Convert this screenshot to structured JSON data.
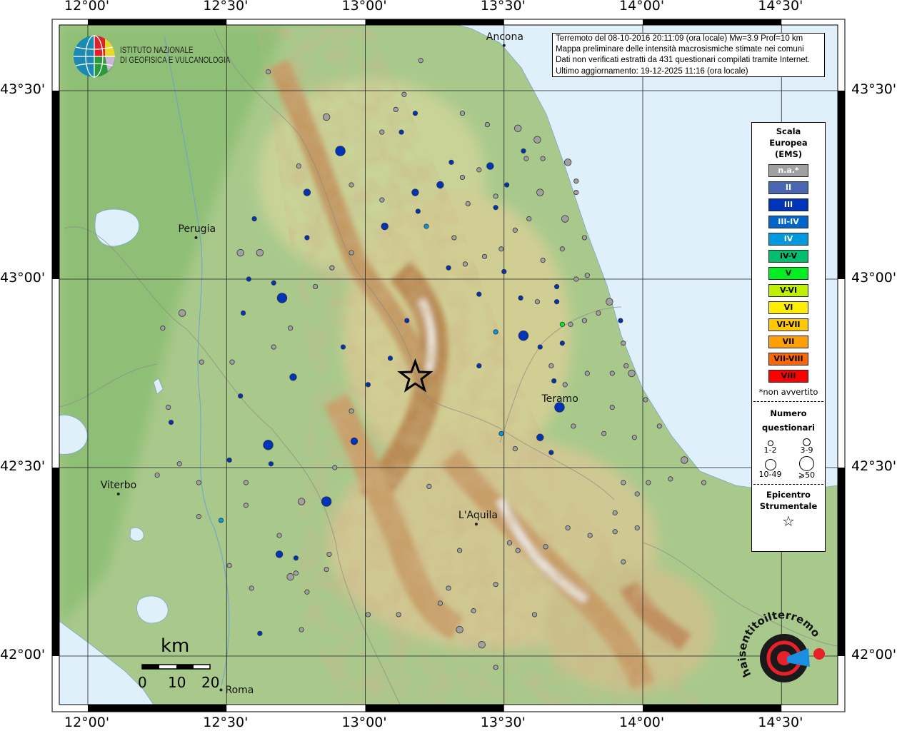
{
  "title_box": {
    "lines": [
      "Terremoto del 08-10-2016 20:11:09 (ora locale) Mw=3.9 Prof=10 km",
      "Mappa preliminare delle intensità macrosismiche stimate nei comuni",
      "Dati non verificati estratti da 431 questionari compilati tramite Internet.",
      "Ultimo aggiornamento: 19-12-2025 11:16 (ora locale)"
    ]
  },
  "ingv_logo": {
    "line1": "ISTITUTO NAZIONALE",
    "line2": "DI GEOFISICA E VULCANOLOGIA"
  },
  "hsit_logo": {
    "text": "www.haisentitoilterremoto.it"
  },
  "grid": {
    "longitudes": [
      {
        "value": 12.0,
        "label": "12°00'"
      },
      {
        "value": 12.5,
        "label": "12°30'"
      },
      {
        "value": 13.0,
        "label": "13°00'"
      },
      {
        "value": 13.5,
        "label": "13°30'"
      },
      {
        "value": 14.0,
        "label": "14°00'"
      },
      {
        "value": 14.5,
        "label": "14°30'"
      }
    ],
    "latitudes": [
      {
        "value": 43.5,
        "label": "43°30'"
      },
      {
        "value": 43.0,
        "label": "43°00'"
      },
      {
        "value": 42.5,
        "label": "42°30'"
      },
      {
        "value": 42.0,
        "label": "42°00'"
      }
    ]
  },
  "legend": {
    "title_lines": [
      "Scala",
      "Europea",
      "(EMS)"
    ],
    "classes": [
      {
        "key": "na",
        "label": "n.a.*",
        "color": "#a0a0a0",
        "text": "#ffffff"
      },
      {
        "key": "II",
        "label": "II",
        "color": "#4a66b0",
        "text": "#ffffff"
      },
      {
        "key": "III",
        "label": "III",
        "color": "#0033bb",
        "text": "#ffffff"
      },
      {
        "key": "III-IV",
        "label": "III-IV",
        "color": "#0066cc",
        "text": "#ffffff"
      },
      {
        "key": "IV",
        "label": "IV",
        "color": "#0099e0",
        "text": "#ffffff"
      },
      {
        "key": "IV-V",
        "label": "IV-V",
        "color": "#00c070",
        "text": "#000000"
      },
      {
        "key": "V",
        "label": "V",
        "color": "#00ee22",
        "text": "#000000"
      },
      {
        "key": "V-VI",
        "label": "V-VI",
        "color": "#c0f000",
        "text": "#000000"
      },
      {
        "key": "VI",
        "label": "VI",
        "color": "#ffee00",
        "text": "#000000"
      },
      {
        "key": "VI-VII",
        "label": "VI-VII",
        "color": "#ffc800",
        "text": "#000000"
      },
      {
        "key": "VII",
        "label": "VII",
        "color": "#ffa000",
        "text": "#000000"
      },
      {
        "key": "VII-VIII",
        "label": "VII-VIII",
        "color": "#ff6600",
        "text": "#000000"
      },
      {
        "key": "VIII",
        "label": "VIII",
        "color": "#ff0000",
        "text": "#000000"
      }
    ],
    "note": "*non avvertito",
    "count_title_lines": [
      "Numero",
      "questionari"
    ],
    "count_classes": [
      "1-2",
      "3-9",
      "10-49",
      "⩾50"
    ],
    "epicenter_title_lines": [
      "Epicentro",
      "Strumentale"
    ]
  },
  "scale_bar": {
    "unit": "km",
    "ticks": [
      "0",
      "10",
      "20"
    ]
  },
  "epicenter": {
    "lon": 13.18,
    "lat": 42.74
  },
  "cities": [
    {
      "name": "Ancona",
      "lon": 13.5,
      "lat": 43.62
    },
    {
      "name": "Perugia",
      "lon": 12.39,
      "lat": 43.11
    },
    {
      "name": "Teramo",
      "lon": 13.7,
      "lat": 42.66
    },
    {
      "name": "Viterbo",
      "lon": 12.11,
      "lat": 42.43
    },
    {
      "name": "L'Aquila",
      "lon": 13.4,
      "lat": 42.35
    },
    {
      "name": "Roma",
      "lon": 12.48,
      "lat": 41.91
    }
  ],
  "points_format": [
    "lon",
    "lat",
    "intensity",
    "questionnaires"
  ],
  "points": [
    [
      12.65,
      43.55,
      "na",
      "1-2"
    ],
    [
      13.2,
      43.58,
      "na",
      "1-2"
    ],
    [
      13.14,
      43.49,
      "na",
      "1-2"
    ],
    [
      13.11,
      43.45,
      "na",
      "1-2"
    ],
    [
      13.35,
      43.44,
      "na",
      "1-2"
    ],
    [
      13.44,
      43.41,
      "na",
      "1-2"
    ],
    [
      13.06,
      43.39,
      "na",
      "1-2"
    ],
    [
      12.76,
      43.3,
      "na",
      "1-2"
    ],
    [
      12.95,
      43.25,
      "na",
      "1-2"
    ],
    [
      13.35,
      43.27,
      "na",
      "1-2"
    ],
    [
      13.41,
      43.29,
      "na",
      "1-2"
    ],
    [
      13.06,
      43.21,
      "na",
      "1-2"
    ],
    [
      13.47,
      43.22,
      "na",
      "1-2"
    ],
    [
      13.37,
      43.2,
      "na",
      "1-2"
    ],
    [
      13.59,
      43.16,
      "na",
      "1-2"
    ],
    [
      13.54,
      43.13,
      "na",
      "1-2"
    ],
    [
      13.32,
      43.11,
      "na",
      "1-2"
    ],
    [
      13.49,
      43.08,
      "na",
      "1-2"
    ],
    [
      13.43,
      43.06,
      "na",
      "1-2"
    ],
    [
      13.36,
      43.04,
      "na",
      "1-2"
    ],
    [
      12.95,
      43.07,
      "na",
      "1-2"
    ],
    [
      12.88,
      43.03,
      "na",
      "1-2"
    ],
    [
      12.82,
      42.98,
      "na",
      "1-2"
    ],
    [
      12.73,
      42.87,
      "na",
      "1-2"
    ],
    [
      12.67,
      42.82,
      "na",
      "1-2"
    ],
    [
      12.52,
      42.78,
      "na",
      "1-2"
    ],
    [
      12.41,
      42.78,
      "na",
      "1-2"
    ],
    [
      12.27,
      42.87,
      "na",
      "1-2"
    ],
    [
      12.29,
      42.66,
      "na",
      "1-2"
    ],
    [
      12.95,
      42.65,
      "na",
      "1-2"
    ],
    [
      12.33,
      42.51,
      "na",
      "1-2"
    ],
    [
      12.25,
      42.48,
      "na",
      "1-2"
    ],
    [
      12.4,
      42.46,
      "na",
      "1-2"
    ],
    [
      12.57,
      42.46,
      "na",
      "1-2"
    ],
    [
      12.57,
      42.4,
      "na",
      "1-2"
    ],
    [
      12.4,
      42.37,
      "na",
      "1-2"
    ],
    [
      12.69,
      42.32,
      "na",
      "1-2"
    ],
    [
      12.51,
      42.24,
      "na",
      "1-2"
    ],
    [
      12.59,
      42.18,
      "na",
      "1-2"
    ],
    [
      12.75,
      42.22,
      "na",
      "1-2"
    ],
    [
      12.79,
      42.17,
      "na",
      "1-2"
    ],
    [
      12.87,
      42.27,
      "na",
      "1-2"
    ],
    [
      12.86,
      42.23,
      "na",
      "1-2"
    ],
    [
      12.77,
      42.07,
      "na",
      "1-2"
    ],
    [
      13.01,
      42.11,
      "na",
      "1-2"
    ],
    [
      13.12,
      42.11,
      "na",
      "1-2"
    ],
    [
      13.27,
      42.14,
      "na",
      "1-2"
    ],
    [
      13.39,
      42.12,
      "na",
      "1-2"
    ],
    [
      13.47,
      41.97,
      "na",
      "1-2"
    ],
    [
      13.23,
      42.45,
      "na",
      "1-2"
    ],
    [
      12.89,
      42.5,
      "na",
      "1-2"
    ],
    [
      13.54,
      42.55,
      "na",
      "1-2"
    ],
    [
      13.75,
      42.61,
      "na",
      "1-2"
    ],
    [
      13.72,
      42.72,
      "na",
      "1-2"
    ],
    [
      13.67,
      42.77,
      "na",
      "1-2"
    ],
    [
      13.8,
      42.75,
      "na",
      "1-2"
    ],
    [
      13.89,
      42.75,
      "na",
      "1-2"
    ],
    [
      13.94,
      42.77,
      "na",
      "1-2"
    ],
    [
      13.89,
      42.66,
      "na",
      "1-2"
    ],
    [
      13.86,
      42.59,
      "na",
      "1-2"
    ],
    [
      13.97,
      42.58,
      "na",
      "1-2"
    ],
    [
      13.93,
      42.46,
      "na",
      "1-2"
    ],
    [
      13.98,
      42.43,
      "na",
      "1-2"
    ],
    [
      14.02,
      42.46,
      "na",
      "1-2"
    ],
    [
      14.1,
      42.47,
      "na",
      "1-2"
    ],
    [
      14.22,
      42.46,
      "na",
      "1-2"
    ],
    [
      14.06,
      42.61,
      "na",
      "1-2"
    ],
    [
      14.01,
      42.68,
      "na",
      "1-2"
    ],
    [
      13.93,
      42.83,
      "na",
      "1-2"
    ],
    [
      13.84,
      42.91,
      "na",
      "1-2"
    ],
    [
      13.79,
      42.89,
      "na",
      "1-2"
    ],
    [
      13.74,
      42.88,
      "na",
      "1-2"
    ],
    [
      13.62,
      42.94,
      "na",
      "1-2"
    ],
    [
      13.76,
      43.0,
      "na",
      "1-2"
    ],
    [
      13.64,
      43.05,
      "na",
      "1-2"
    ],
    [
      13.71,
      43.08,
      "na",
      "1-2"
    ],
    [
      13.76,
      43.26,
      "na",
      "1-2"
    ],
    [
      13.76,
      43.23,
      "na",
      "1-2"
    ],
    [
      13.79,
      43.11,
      "na",
      "1-2"
    ],
    [
      13.58,
      43.32,
      "na",
      "1-2"
    ],
    [
      13.64,
      43.32,
      "na",
      "1-2"
    ],
    [
      13.8,
      43.01,
      "na",
      "1-2"
    ],
    [
      13.34,
      42.28,
      "na",
      "1-2"
    ],
    [
      13.55,
      42.28,
      "na",
      "1-2"
    ],
    [
      13.65,
      42.29,
      "na",
      "1-2"
    ],
    [
      13.73,
      42.34,
      "na",
      "1-2"
    ],
    [
      13.81,
      42.32,
      "na",
      "1-2"
    ],
    [
      13.9,
      42.33,
      "na",
      "1-2"
    ],
    [
      13.98,
      42.34,
      "na",
      "1-2"
    ],
    [
      13.9,
      42.38,
      "na",
      "1-2"
    ],
    [
      13.93,
      42.25,
      "na",
      "1-2"
    ],
    [
      13.61,
      42.11,
      "na",
      "1-2"
    ],
    [
      13.3,
      42.18,
      "na",
      "1-2"
    ],
    [
      13.47,
      42.19,
      "na",
      "1-2"
    ],
    [
      13.52,
      42.3,
      "na",
      "1-2"
    ],
    [
      12.86,
      43.43,
      "na",
      "3-9"
    ],
    [
      13.55,
      43.4,
      "na",
      "3-9"
    ],
    [
      13.62,
      43.37,
      "na",
      "3-9"
    ],
    [
      13.73,
      43.31,
      "na",
      "3-9"
    ],
    [
      13.63,
      43.23,
      "na",
      "3-9"
    ],
    [
      13.72,
      43.16,
      "na",
      "3-9"
    ],
    [
      13.88,
      42.94,
      "na",
      "3-9"
    ],
    [
      13.96,
      42.75,
      "na",
      "3-9"
    ],
    [
      14.15,
      42.52,
      "na",
      "3-9"
    ],
    [
      12.55,
      43.07,
      "na",
      "3-9"
    ],
    [
      12.62,
      43.07,
      "na",
      "3-9"
    ],
    [
      12.34,
      42.91,
      "na",
      "3-9"
    ],
    [
      12.77,
      42.41,
      "na",
      "3-9"
    ],
    [
      12.73,
      42.21,
      "na",
      "3-9"
    ],
    [
      13.34,
      42.07,
      "na",
      "3-9"
    ],
    [
      13.42,
      42.03,
      "na",
      "3-9"
    ],
    [
      13.18,
      43.44,
      "III",
      "1-2"
    ],
    [
      13.13,
      43.39,
      "III",
      "1-2"
    ],
    [
      13.57,
      43.34,
      "III",
      "1-2"
    ],
    [
      13.31,
      43.31,
      "III",
      "1-2"
    ],
    [
      13.51,
      43.25,
      "III",
      "1-2"
    ],
    [
      13.47,
      43.19,
      "III",
      "1-2"
    ],
    [
      13.19,
      43.18,
      "III",
      "1-2"
    ],
    [
      12.6,
      43.16,
      "III",
      "1-2"
    ],
    [
      12.79,
      43.11,
      "III",
      "1-2"
    ],
    [
      13.3,
      43.03,
      "III",
      "1-2"
    ],
    [
      13.5,
      43.02,
      "III",
      "1-2"
    ],
    [
      13.41,
      42.96,
      "III",
      "1-2"
    ],
    [
      13.56,
      42.95,
      "III",
      "1-2"
    ],
    [
      13.69,
      42.98,
      "III",
      "1-2"
    ],
    [
      13.69,
      42.94,
      "III",
      "1-2"
    ],
    [
      13.92,
      42.89,
      "III",
      "1-2"
    ],
    [
      13.63,
      42.82,
      "III",
      "1-2"
    ],
    [
      13.71,
      42.83,
      "III",
      "1-2"
    ],
    [
      12.58,
      43.0,
      "III",
      "1-2"
    ],
    [
      12.67,
      42.99,
      "III",
      "1-2"
    ],
    [
      12.56,
      42.91,
      "III",
      "1-2"
    ],
    [
      13.15,
      42.89,
      "III",
      "1-2"
    ],
    [
      12.92,
      42.82,
      "III",
      "1-2"
    ],
    [
      13.09,
      42.79,
      "III",
      "1-2"
    ],
    [
      13.41,
      42.77,
      "III",
      "1-2"
    ],
    [
      13.68,
      42.73,
      "III",
      "1-2"
    ],
    [
      13.01,
      42.72,
      "III",
      "1-2"
    ],
    [
      12.55,
      42.69,
      "III",
      "1-2"
    ],
    [
      12.3,
      42.62,
      "III",
      "1-2"
    ],
    [
      13.67,
      42.54,
      "III",
      "1-2"
    ],
    [
      12.66,
      42.51,
      "III",
      "1-2"
    ],
    [
      12.51,
      42.52,
      "III",
      "1-2"
    ],
    [
      12.75,
      42.26,
      "III",
      "1-2"
    ],
    [
      12.62,
      42.06,
      "III",
      "1-2"
    ],
    [
      12.79,
      43.23,
      "III",
      "3-9"
    ],
    [
      13.18,
      43.23,
      "III",
      "3-9"
    ],
    [
      13.27,
      43.25,
      "III",
      "3-9"
    ],
    [
      13.45,
      43.3,
      "III",
      "3-9"
    ],
    [
      13.07,
      43.14,
      "III",
      "3-9"
    ],
    [
      12.74,
      42.74,
      "III",
      "3-9"
    ],
    [
      12.96,
      42.57,
      "III",
      "3-9"
    ],
    [
      13.63,
      42.58,
      "III",
      "3-9"
    ],
    [
      12.69,
      42.27,
      "III",
      "3-9"
    ],
    [
      12.91,
      43.34,
      "III",
      "10-49"
    ],
    [
      12.7,
      42.95,
      "III",
      "10-49"
    ],
    [
      13.57,
      42.85,
      "III",
      "10-49"
    ],
    [
      12.65,
      42.56,
      "III",
      "10-49"
    ],
    [
      12.86,
      42.41,
      "III",
      "10-49"
    ],
    [
      13.7,
      42.66,
      "III",
      "10-49"
    ],
    [
      13.22,
      43.14,
      "IV",
      "1-2"
    ],
    [
      13.47,
      42.86,
      "IV",
      "1-2"
    ],
    [
      13.49,
      42.59,
      "IV",
      "1-2"
    ],
    [
      12.48,
      42.36,
      "IV",
      "1-2"
    ],
    [
      13.71,
      42.88,
      "V",
      "1-2"
    ]
  ]
}
